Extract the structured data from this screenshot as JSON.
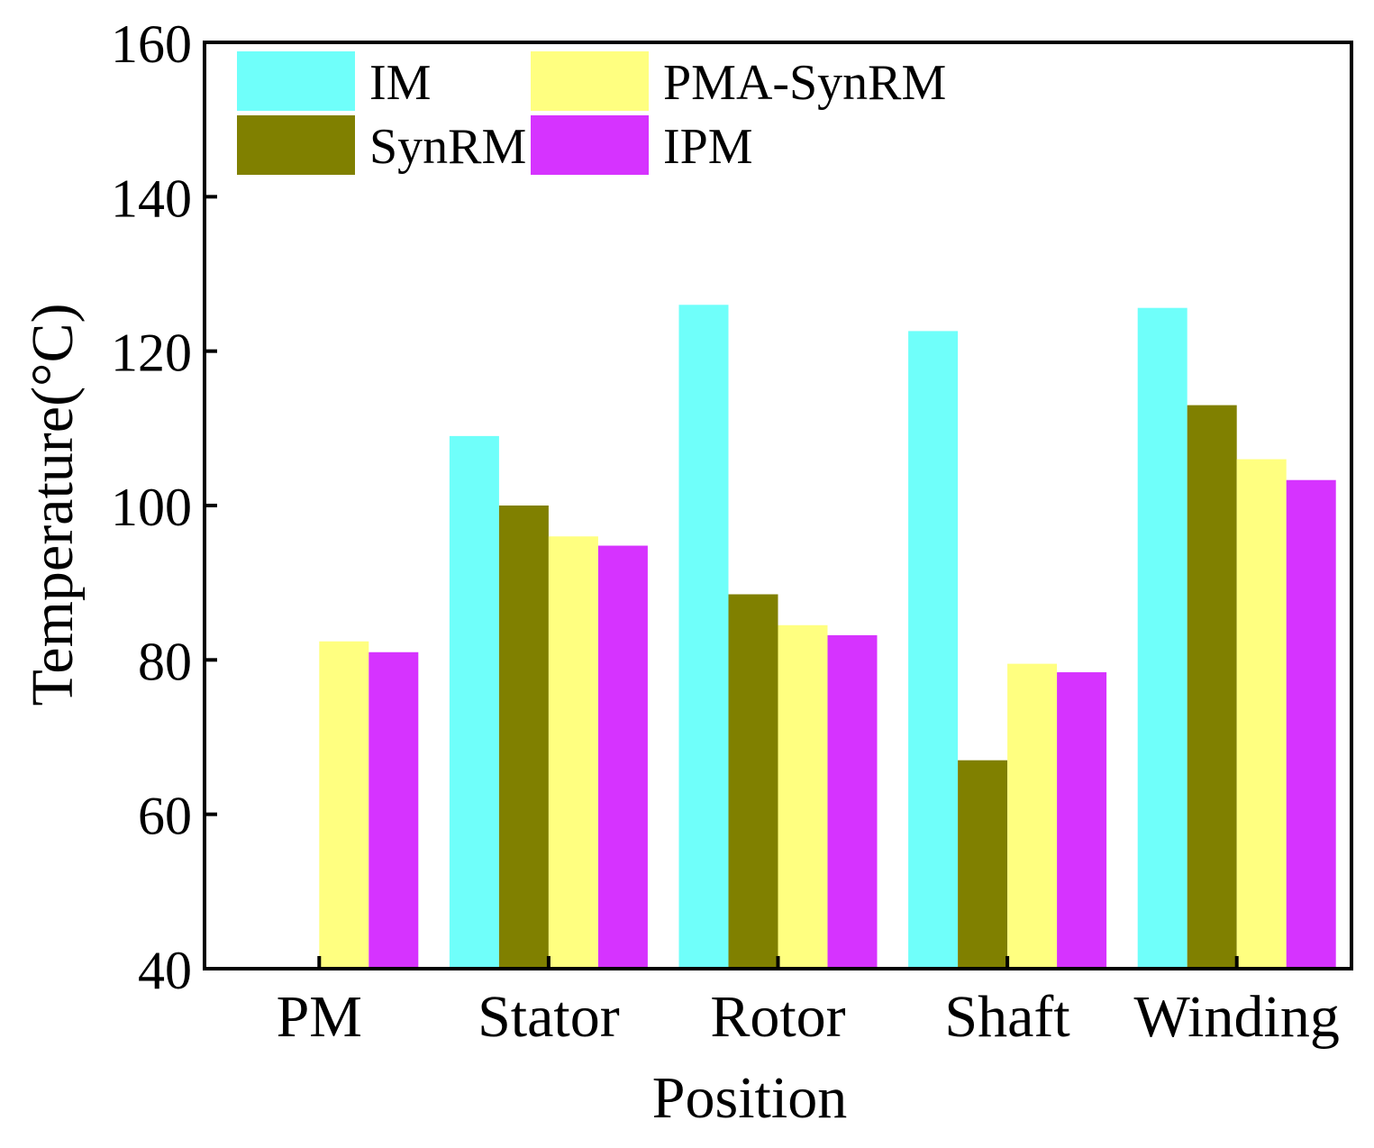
{
  "chart_data": {
    "type": "bar",
    "title": "",
    "xlabel": "Position",
    "ylabel": "Temperature(°C)",
    "categories": [
      "PM",
      "Stator",
      "Rotor",
      "Shaft",
      "Winding"
    ],
    "ylim": [
      40,
      160
    ],
    "yticks": [
      40,
      60,
      80,
      100,
      120,
      140,
      160
    ],
    "grid": false,
    "legend_position": "top-left",
    "series": [
      {
        "name": "IM",
        "color": "#6ffffa",
        "values": [
          null,
          109,
          126,
          122.6,
          125.6
        ]
      },
      {
        "name": "SynRM",
        "color": "#808000",
        "values": [
          null,
          100,
          88.5,
          67,
          113
        ]
      },
      {
        "name": "PMA-SynRM",
        "color": "#ffff80",
        "values": [
          82.4,
          96,
          84.5,
          79.5,
          106
        ]
      },
      {
        "name": "IPM",
        "color": "#d633ff",
        "values": [
          81,
          94.8,
          83.2,
          78.4,
          103.3
        ]
      }
    ]
  }
}
